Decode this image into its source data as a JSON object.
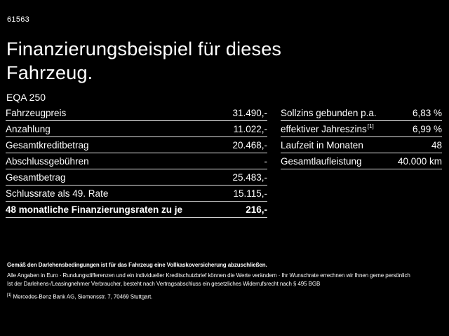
{
  "screen": {
    "code": "61563",
    "title_line1": "Finanzierungsbeispiel für dieses",
    "title_line2": "Fahrzeug.",
    "model": "EQA 250"
  },
  "left_table": {
    "rows": [
      {
        "label": "Fahrzeugpreis",
        "value": "31.490,-"
      },
      {
        "label": "Anzahlung",
        "value": "11.022,-"
      },
      {
        "label": "Gesamtkreditbetrag",
        "value": "20.468,-"
      },
      {
        "label": "Abschlussgebühren",
        "value": "-"
      },
      {
        "label": "Gesamtbetrag",
        "value": "25.483,-"
      },
      {
        "label": "Schlussrate als 49. Rate",
        "value": "15.115,-"
      },
      {
        "label": "48 monatliche Finanzierungsraten zu je",
        "value": "216,-"
      }
    ]
  },
  "right_table": {
    "rows": [
      {
        "label": "Sollzins gebunden p.a.",
        "value": "6,83 %"
      },
      {
        "label": "effektiver Jahreszins",
        "sup": "[1]",
        "value": "6,99 %"
      },
      {
        "label": "Laufzeit in Monaten",
        "value": "48"
      },
      {
        "label": "Gesamtlaufleistung",
        "value": "40.000 km"
      }
    ]
  },
  "footer": {
    "line1": "Gemäß den Darlehensbedingungen ist für das Fahrzeug eine Vollkaskoversicherung abzuschließen.",
    "line2": "Alle Angaben in Euro · Rundungsdifferenzen und ein individueller Kreditschutzbrief können die Werte verändern · Ihr Wunschrate errechnen wir Ihnen gerne persönlich",
    "line3": "Ist der Darlehens-/Leasingnehmer Verbraucher, besteht nach Vertragsabschluss ein gesetzliches Widerrufsrecht nach § 495 BGB",
    "footnote_marker": "[1]",
    "footnote_text": "Mercedes-Benz Bank AG, Siemensstr. 7, 70469 Stuttgart."
  }
}
